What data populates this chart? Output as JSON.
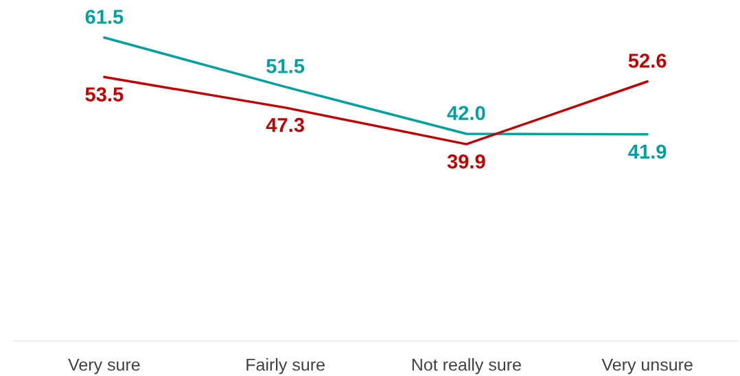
{
  "chart_data": {
    "type": "line",
    "categories": [
      "Very sure",
      "Fairly sure",
      "Not really sure",
      "Very unsure"
    ],
    "series": [
      {
        "color": "#00a0a0",
        "values": [
          61.5,
          51.5,
          42.0,
          41.9
        ],
        "value_labels": [
          "61.5",
          "51.5",
          "42.0",
          "41.9"
        ]
      },
      {
        "color": "#c00000",
        "values": [
          53.5,
          47.3,
          39.9,
          52.6
        ],
        "value_labels": [
          "53.5",
          "47.3",
          "39.9",
          "52.6"
        ]
      }
    ],
    "tick_labels": "x",
    "grid": false,
    "legend": false,
    "marker": "none",
    "line_style": "solid"
  }
}
